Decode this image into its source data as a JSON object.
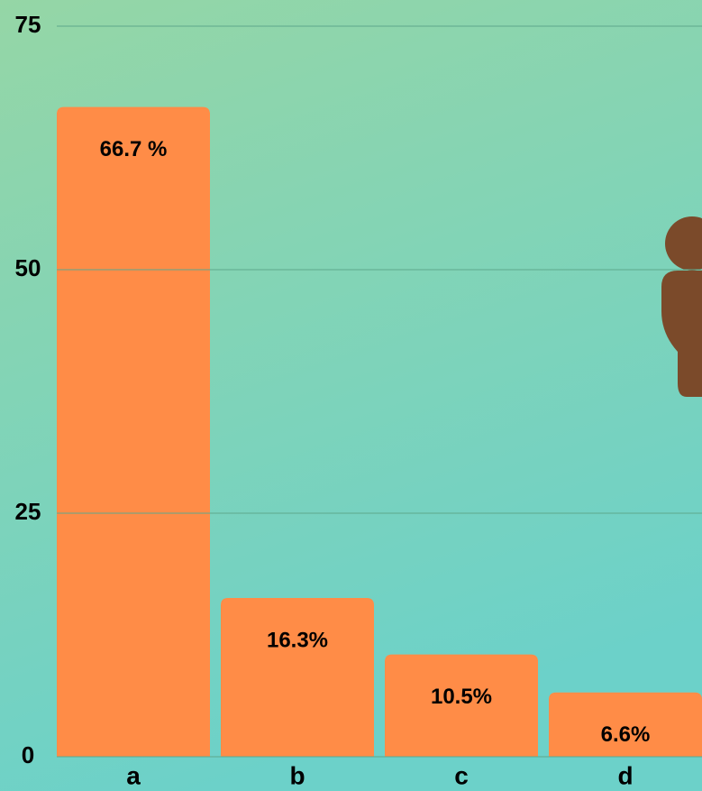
{
  "chart_data": {
    "type": "bar",
    "categories": [
      "a",
      "b",
      "c",
      "d"
    ],
    "values": [
      66.7,
      16.3,
      10.5,
      6.6
    ],
    "value_labels": [
      "66.7 %",
      "16.3%",
      "10.5%",
      "6.6%"
    ],
    "color": "#ff8c47",
    "ylim": [
      0,
      75
    ],
    "yticks": [
      0,
      25,
      50,
      75
    ],
    "grid": true
  }
}
